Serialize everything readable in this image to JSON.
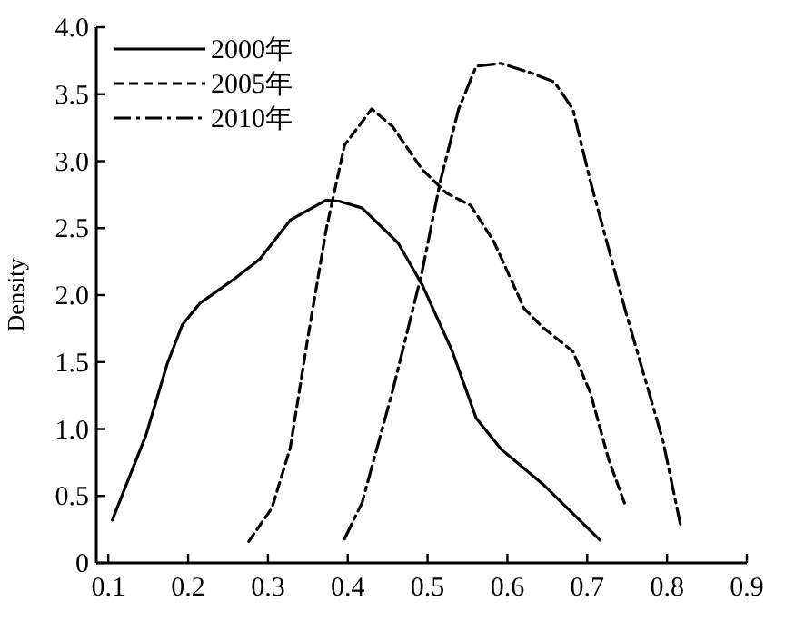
{
  "chart_data": {
    "type": "line",
    "ylabel": "Density",
    "legend": "top left",
    "grid": false,
    "xlim": [
      0.085,
      0.9
    ],
    "xticks": [
      0.1,
      0.2,
      0.3,
      0.4,
      0.5,
      0.6,
      0.7,
      0.8,
      0.9
    ],
    "ylim": [
      0,
      4
    ],
    "yticks": [
      {
        "value": 0,
        "label": "0"
      },
      0.5,
      {
        "value": 1,
        "label": "1.0"
      },
      1.5,
      {
        "value": 2,
        "label": "2.0"
      },
      2.5,
      {
        "value": 3,
        "label": "3.0"
      },
      3.5,
      {
        "value": 4,
        "label": "4.0"
      }
    ],
    "series": [
      {
        "name": "2000年",
        "color": "#000000",
        "line_style": "solid",
        "x": [
          0.105,
          0.147,
          0.174,
          0.193,
          0.215,
          0.26,
          0.29,
          0.328,
          0.373,
          0.39,
          0.418,
          0.463,
          0.493,
          0.531,
          0.561,
          0.592,
          0.644,
          0.716
        ],
        "values": [
          0.32,
          0.95,
          1.49,
          1.78,
          1.94,
          2.13,
          2.27,
          2.56,
          2.71,
          2.7,
          2.65,
          2.39,
          2.08,
          1.58,
          1.08,
          0.85,
          0.59,
          0.17
        ]
      },
      {
        "name": "2005年",
        "color": "#000000",
        "line_style": "dashed",
        "x": [
          0.276,
          0.305,
          0.328,
          0.35,
          0.373,
          0.396,
          0.43,
          0.456,
          0.493,
          0.524,
          0.554,
          0.583,
          0.621,
          0.644,
          0.682,
          0.704,
          0.727,
          0.749
        ],
        "values": [
          0.16,
          0.41,
          0.86,
          1.68,
          2.49,
          3.12,
          3.39,
          3.26,
          2.94,
          2.76,
          2.67,
          2.4,
          1.9,
          1.76,
          1.58,
          1.27,
          0.77,
          0.41
        ]
      },
      {
        "name": "2010年",
        "color": "#000000",
        "line_style": "dashdot",
        "x": [
          0.396,
          0.418,
          0.456,
          0.493,
          0.516,
          0.539,
          0.561,
          0.592,
          0.629,
          0.659,
          0.682,
          0.704,
          0.749,
          0.795,
          0.817
        ],
        "values": [
          0.18,
          0.45,
          1.28,
          2.17,
          2.85,
          3.39,
          3.71,
          3.73,
          3.66,
          3.59,
          3.39,
          2.85,
          1.86,
          0.91,
          0.28
        ]
      }
    ]
  }
}
